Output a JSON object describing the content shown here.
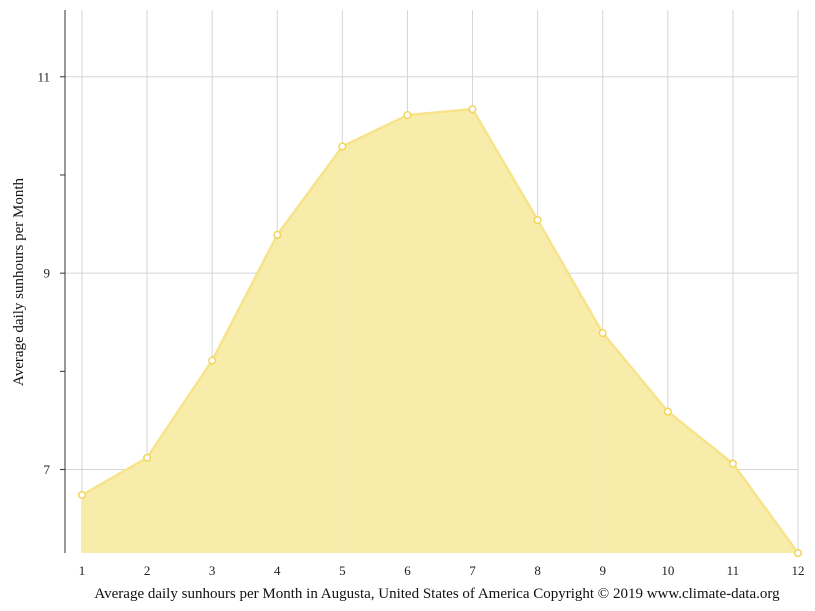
{
  "chart_data": {
    "type": "area",
    "x": [
      1,
      2,
      3,
      4,
      5,
      6,
      7,
      8,
      9,
      10,
      11,
      12
    ],
    "x_tick_labels": [
      "1",
      "2",
      "3",
      "4",
      "5",
      "6",
      "7",
      "8",
      "9",
      "10",
      "11",
      "12"
    ],
    "values": [
      6.74,
      7.12,
      8.11,
      9.39,
      10.29,
      10.61,
      10.67,
      9.54,
      8.39,
      7.59,
      7.06,
      6.15
    ],
    "ylabel": "Average daily sunhours per Month",
    "xlabel": "Average daily sunhours per Month in Augusta, United States of America Copyright © 2019 www.climate-data.org",
    "y_ticks": [
      7,
      8,
      9,
      10,
      11
    ],
    "y_tick_labels": [
      "7",
      "",
      "9",
      "",
      "11"
    ],
    "ylim": [
      6.15,
      11.68
    ],
    "xlim": [
      1,
      12
    ],
    "grid": true,
    "colors": {
      "fill": "#f8eba6",
      "line": "#f7e38a",
      "marker_stroke": "#f2d45c",
      "marker_fill": "#ffffff",
      "grid": "#d6d6d6",
      "axis": "#333333"
    }
  }
}
